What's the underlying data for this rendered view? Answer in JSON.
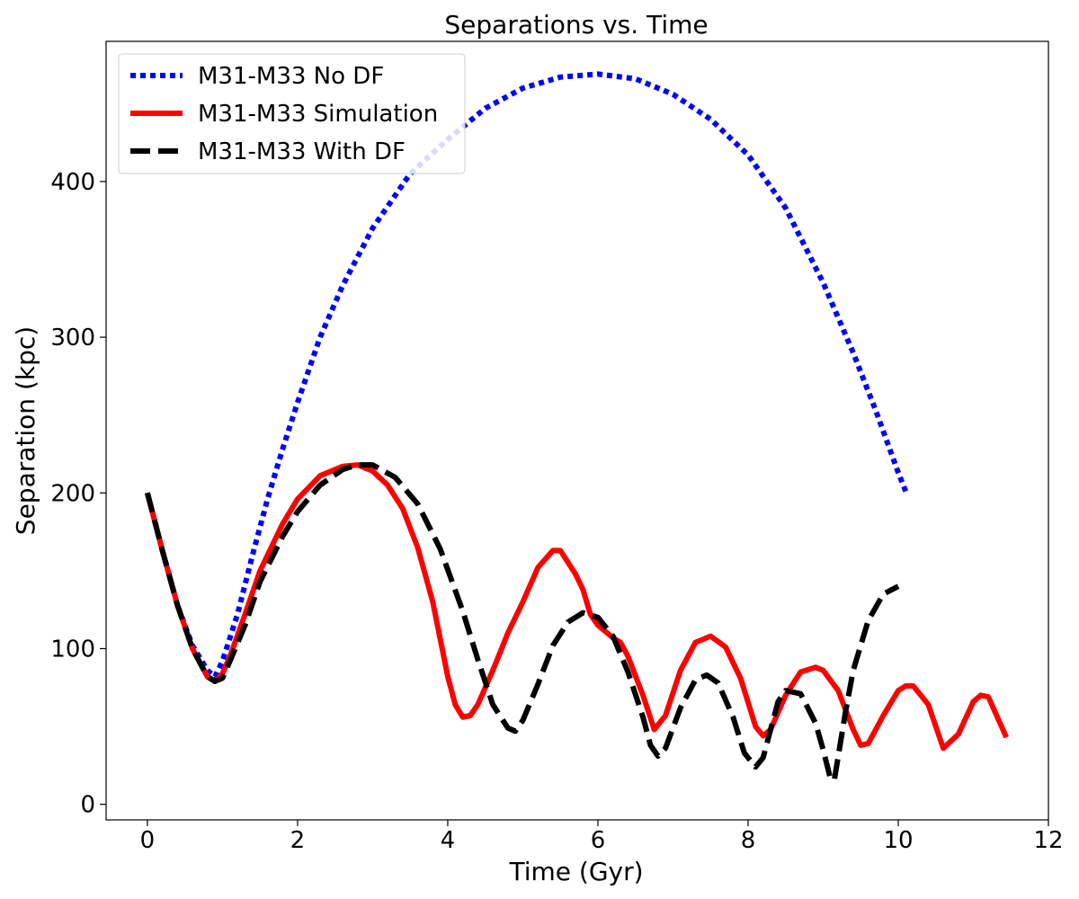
{
  "chart_data": {
    "type": "line",
    "title": "Separations vs. Time",
    "xlabel": "Time (Gyr)",
    "ylabel": "Separation (kpc)",
    "xlim": [
      -0.55,
      12
    ],
    "ylim": [
      -10,
      490
    ],
    "xticks": [
      0,
      2,
      4,
      6,
      8,
      10,
      12
    ],
    "yticks": [
      0,
      100,
      200,
      300,
      400
    ],
    "grid": false,
    "legend_position": "top-left",
    "series": [
      {
        "name": "M31-M33 No DF",
        "color": "#0000ff",
        "style": "dotted",
        "x": [
          0,
          0.2,
          0.4,
          0.6,
          0.8,
          0.9,
          1.0,
          1.2,
          1.4,
          1.6,
          1.8,
          2.0,
          2.3,
          2.6,
          3.0,
          3.5,
          4.0,
          4.5,
          5.0,
          5.5,
          6.0,
          6.5,
          7.0,
          7.5,
          8.0,
          8.5,
          9.0,
          9.4,
          9.7,
          10.0,
          10.1
        ],
        "y": [
          200,
          163,
          128,
          102,
          86,
          82,
          92,
          122,
          160,
          196,
          228,
          258,
          300,
          333,
          370,
          405,
          427,
          447,
          460,
          467,
          469,
          466,
          456,
          440,
          417,
          383,
          335,
          290,
          253,
          213,
          201
        ]
      },
      {
        "name": "M31-M33 Simulation",
        "color": "#ff0000",
        "style": "solid",
        "x": [
          0,
          0.2,
          0.4,
          0.6,
          0.8,
          0.9,
          1.0,
          1.1,
          1.3,
          1.5,
          1.8,
          2.0,
          2.3,
          2.6,
          2.8,
          3.0,
          3.2,
          3.4,
          3.6,
          3.8,
          4.0,
          4.1,
          4.2,
          4.3,
          4.4,
          4.6,
          4.8,
          5.0,
          5.2,
          5.4,
          5.5,
          5.7,
          5.8,
          5.9,
          6.0,
          6.2,
          6.3,
          6.4,
          6.6,
          6.75,
          6.9,
          7.1,
          7.3,
          7.5,
          7.7,
          7.9,
          8.1,
          8.2,
          8.3,
          8.5,
          8.7,
          8.9,
          9.0,
          9.2,
          9.4,
          9.5,
          9.6,
          9.8,
          10.0,
          10.1,
          10.2,
          10.4,
          10.6,
          10.8,
          11.0,
          11.1,
          11.2,
          11.44
        ],
        "y": [
          200,
          163,
          128,
          100,
          82,
          79,
          84,
          95,
          122,
          150,
          180,
          196,
          211,
          217,
          218,
          214,
          205,
          190,
          165,
          130,
          82,
          64,
          56,
          57,
          64,
          86,
          110,
          130,
          152,
          163,
          163,
          148,
          138,
          122,
          115,
          107,
          104,
          95,
          70,
          48,
          57,
          86,
          104,
          108,
          101,
          81,
          50,
          44,
          48,
          70,
          85,
          88,
          86,
          73,
          48,
          38,
          39,
          57,
          73,
          76,
          76,
          64,
          36,
          45,
          66,
          70,
          69,
          43
        ]
      },
      {
        "name": "M31-M33 With DF",
        "color": "#000000",
        "style": "dashed",
        "x": [
          0,
          0.2,
          0.4,
          0.6,
          0.8,
          0.9,
          1.0,
          1.1,
          1.3,
          1.5,
          1.8,
          2.0,
          2.3,
          2.6,
          2.8,
          3.0,
          3.3,
          3.6,
          3.9,
          4.2,
          4.4,
          4.6,
          4.8,
          4.9,
          5.0,
          5.2,
          5.4,
          5.6,
          5.8,
          6.0,
          6.2,
          6.4,
          6.6,
          6.7,
          6.8,
          6.9,
          7.1,
          7.3,
          7.45,
          7.6,
          7.8,
          7.95,
          8.1,
          8.2,
          8.3,
          8.4,
          8.5,
          8.7,
          8.9,
          9.0,
          9.1,
          9.15,
          9.3,
          9.4,
          9.6,
          9.8,
          10.0
        ],
        "y": [
          200,
          163,
          128,
          100,
          82,
          79,
          81,
          92,
          115,
          143,
          172,
          188,
          205,
          215,
          218,
          218,
          210,
          193,
          164,
          124,
          93,
          64,
          49,
          47,
          54,
          77,
          102,
          117,
          123,
          120,
          108,
          85,
          56,
          38,
          31,
          36,
          62,
          80,
          83,
          78,
          56,
          33,
          24,
          30,
          48,
          66,
          73,
          71,
          52,
          35,
          16,
          16,
          60,
          86,
          118,
          135,
          140
        ]
      }
    ]
  }
}
